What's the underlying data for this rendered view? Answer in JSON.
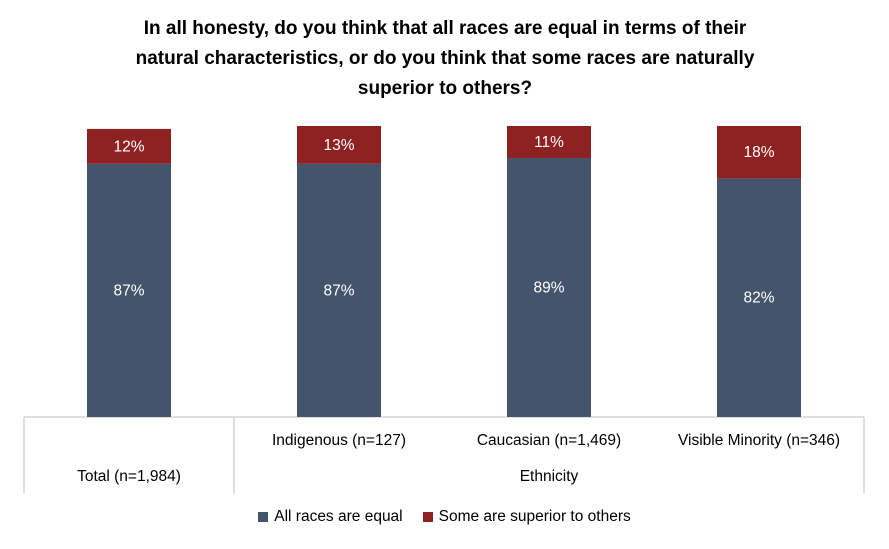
{
  "chart_data": {
    "type": "bar",
    "stacked": true,
    "title_lines": [
      "In all honesty, do you think that all races are equal in terms of their",
      "natural characteristics, or do you think that some races are naturally",
      "superior to others?"
    ],
    "categories": [
      "Total (n=1,984)",
      "Indigenous (n=127)",
      "Caucasian (n=1,469)",
      "Visible Minority (n=346)"
    ],
    "group_label": "Ethnicity",
    "series": [
      {
        "name": "All races are equal",
        "color": "#44546A",
        "values": [
          87,
          87,
          89,
          82
        ],
        "labels": [
          "87%",
          "87%",
          "89%",
          "82%"
        ]
      },
      {
        "name": "Some are superior to others",
        "color": "#8E2121",
        "values": [
          12,
          13,
          11,
          18
        ],
        "labels": [
          "12%",
          "13%",
          "11%",
          "18%"
        ]
      }
    ],
    "ylim": [
      0,
      100
    ],
    "legend_position": "bottom"
  }
}
